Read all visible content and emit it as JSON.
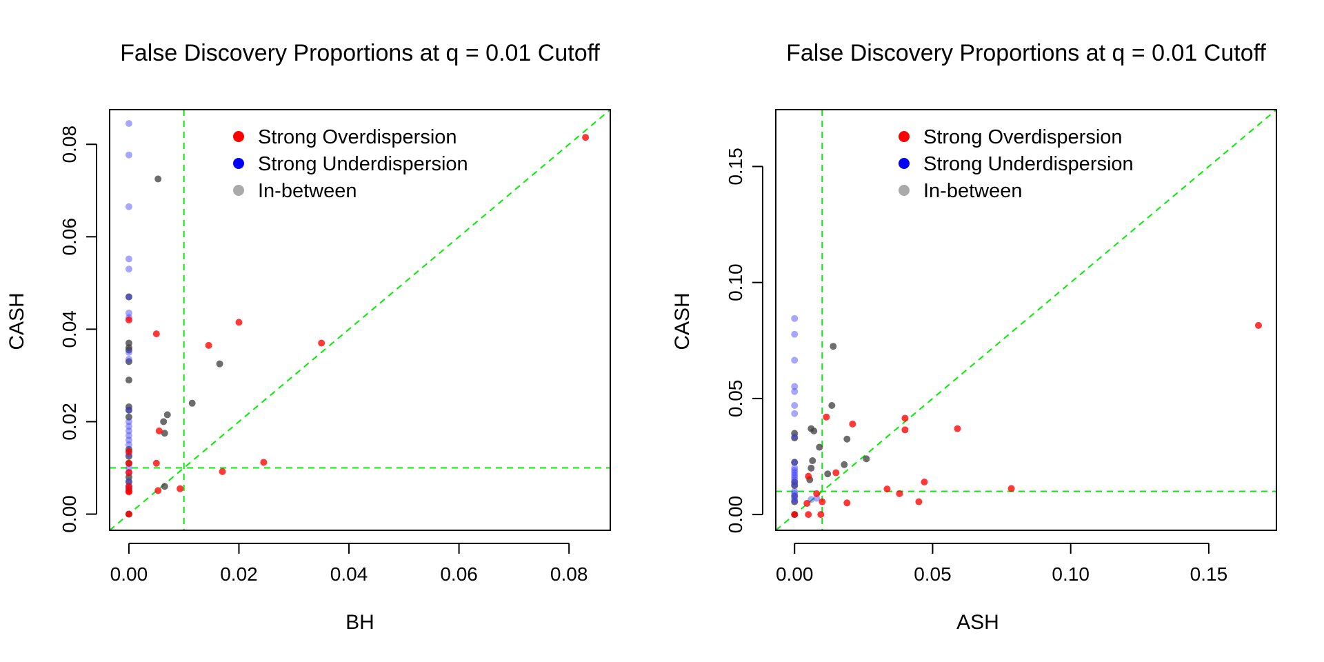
{
  "colors": {
    "overdispersion": "#ff0000",
    "underdispersion": "#3b3bff",
    "in_between": "#444444",
    "reference_lines": "#00ee00",
    "legend_overdispersion": "#ff0000",
    "legend_underdispersion": "#0000ff",
    "legend_in_between": "#aaaaaa"
  },
  "chart_data": [
    {
      "type": "scatter",
      "title": "False Discovery Proportions at q = 0.01 Cutoff",
      "xlabel": "BH",
      "ylabel": "CASH",
      "xlim": [
        -0.0035,
        0.0875
      ],
      "ylim": [
        -0.0035,
        0.0875
      ],
      "xticks": [
        0.0,
        0.02,
        0.04,
        0.06,
        0.08
      ],
      "xtick_labels": [
        "0.00",
        "0.02",
        "0.04",
        "0.06",
        "0.08"
      ],
      "yticks": [
        0.0,
        0.02,
        0.04,
        0.06,
        0.08
      ],
      "ytick_labels": [
        "0.00",
        "0.02",
        "0.04",
        "0.06",
        "0.08"
      ],
      "reference_lines": {
        "vertical": 0.01,
        "horizontal": 0.01,
        "diagonal": true
      },
      "legend_position": "top",
      "legend": [
        "Strong Overdispersion",
        "Strong Underdispersion",
        "In-between"
      ],
      "series": [
        {
          "name": "Strong Overdispersion",
          "color_key": "overdispersion",
          "points": [
            [
              0.083,
              0.0815
            ],
            [
              0.035,
              0.037
            ],
            [
              0.02,
              0.0415
            ],
            [
              0.0145,
              0.0365
            ],
            [
              0.005,
              0.039
            ],
            [
              0.0245,
              0.0112
            ],
            [
              0.017,
              0.0092
            ],
            [
              0.0093,
              0.0055
            ],
            [
              0.0055,
              0.018
            ],
            [
              0.005,
              0.011
            ],
            [
              0.0053,
              0.0051
            ],
            [
              0.0,
              0.042
            ],
            [
              0.0,
              0.009
            ],
            [
              0.0,
              0.006
            ],
            [
              0.0,
              0.005
            ],
            [
              0.0,
              0.0048
            ],
            [
              0.0,
              0.0
            ],
            [
              0.0,
              0.011
            ],
            [
              0.0,
              0.0135
            ]
          ]
        },
        {
          "name": "Strong Underdispersion",
          "color_key": "underdispersion",
          "points": [
            [
              0.0,
              0.0845
            ],
            [
              0.0,
              0.0777
            ],
            [
              0.0,
              0.0665
            ],
            [
              0.0,
              0.0552
            ],
            [
              0.0,
              0.053
            ],
            [
              0.0,
              0.047
            ],
            [
              0.0,
              0.0435
            ],
            [
              0.0,
              0.0425
            ],
            [
              0.0,
              0.035
            ],
            [
              0.0,
              0.0335
            ],
            [
              0.0,
              0.0225
            ],
            [
              0.0,
              0.02
            ],
            [
              0.0,
              0.019
            ],
            [
              0.0,
              0.018
            ],
            [
              0.0,
              0.017
            ],
            [
              0.0,
              0.016
            ],
            [
              0.0,
              0.015
            ],
            [
              0.0,
              0.013
            ],
            [
              0.0,
              0.01
            ],
            [
              0.0,
              0.009
            ],
            [
              0.0,
              0.007
            ],
            [
              0.0,
              0.006
            ]
          ]
        },
        {
          "name": "In-between",
          "color_key": "in_between",
          "points": [
            [
              0.0053,
              0.0725
            ],
            [
              0.0165,
              0.0325
            ],
            [
              0.0115,
              0.024
            ],
            [
              0.007,
              0.0215
            ],
            [
              0.0063,
              0.02
            ],
            [
              0.0065,
              0.0175
            ],
            [
              0.0065,
              0.006
            ],
            [
              0.0,
              0.047
            ],
            [
              0.0,
              0.037
            ],
            [
              0.0,
              0.036
            ],
            [
              0.0,
              0.0355
            ],
            [
              0.0,
              0.033
            ],
            [
              0.0,
              0.029
            ],
            [
              0.0,
              0.0232
            ],
            [
              0.0,
              0.0225
            ],
            [
              0.0,
              0.021
            ],
            [
              0.0,
              0.014
            ],
            [
              0.0,
              0.0125
            ],
            [
              0.0,
              0.011
            ],
            [
              0.0,
              0.008
            ],
            [
              0.0,
              0.007
            ],
            [
              0.0,
              0.0
            ],
            [
              0.0,
              0.0055
            ]
          ]
        }
      ]
    },
    {
      "type": "scatter",
      "title": "False Discovery Proportions at q = 0.01 Cutoff",
      "xlabel": "ASH",
      "ylabel": "CASH",
      "xlim": [
        -0.0068,
        0.1745
      ],
      "ylim": [
        -0.0068,
        0.1745
      ],
      "xticks": [
        0.0,
        0.05,
        0.1,
        0.15
      ],
      "xtick_labels": [
        "0.00",
        "0.05",
        "0.10",
        "0.15"
      ],
      "yticks": [
        0.0,
        0.05,
        0.1,
        0.15
      ],
      "ytick_labels": [
        "0.00",
        "0.05",
        "0.10",
        "0.15"
      ],
      "reference_lines": {
        "vertical": 0.01,
        "horizontal": 0.01,
        "diagonal": true
      },
      "legend_position": "top",
      "legend": [
        "Strong Overdispersion",
        "Strong Underdispersion",
        "In-between"
      ],
      "series": [
        {
          "name": "Strong Overdispersion",
          "color_key": "overdispersion",
          "points": [
            [
              0.168,
              0.0815
            ],
            [
              0.0785,
              0.0112
            ],
            [
              0.059,
              0.037
            ],
            [
              0.04,
              0.0415
            ],
            [
              0.04,
              0.0365
            ],
            [
              0.047,
              0.014
            ],
            [
              0.045,
              0.0055
            ],
            [
              0.038,
              0.009
            ],
            [
              0.0335,
              0.011
            ],
            [
              0.021,
              0.039
            ],
            [
              0.0115,
              0.042
            ],
            [
              0.015,
              0.018
            ],
            [
              0.019,
              0.005
            ],
            [
              0.01,
              0.0055
            ],
            [
              0.0095,
              0.0
            ],
            [
              0.008,
              0.009
            ],
            [
              0.005,
              0.0165
            ],
            [
              0.005,
              0.0
            ],
            [
              0.0045,
              0.0048
            ],
            [
              0.0,
              0.0
            ]
          ]
        },
        {
          "name": "Strong Underdispersion",
          "color_key": "underdispersion",
          "points": [
            [
              0.0,
              0.0845
            ],
            [
              0.0,
              0.0777
            ],
            [
              0.0,
              0.0665
            ],
            [
              0.0,
              0.0552
            ],
            [
              0.0,
              0.053
            ],
            [
              0.0,
              0.047
            ],
            [
              0.0,
              0.0435
            ],
            [
              0.0,
              0.0335
            ],
            [
              0.0,
              0.0225
            ],
            [
              0.0,
              0.02
            ],
            [
              0.0,
              0.019
            ],
            [
              0.0,
              0.018
            ],
            [
              0.0,
              0.017
            ],
            [
              0.0,
              0.016
            ],
            [
              0.0,
              0.015
            ],
            [
              0.0,
              0.013
            ],
            [
              0.0,
              0.01
            ],
            [
              0.0,
              0.009
            ],
            [
              0.0,
              0.007
            ],
            [
              0.0,
              0.006
            ],
            [
              0.008,
              0.007
            ],
            [
              0.006,
              0.0065
            ]
          ]
        },
        {
          "name": "In-between",
          "color_key": "in_between",
          "points": [
            [
              0.014,
              0.0725
            ],
            [
              0.0135,
              0.047
            ],
            [
              0.006,
              0.037
            ],
            [
              0.007,
              0.036
            ],
            [
              0.009,
              0.029
            ],
            [
              0.019,
              0.0325
            ],
            [
              0.026,
              0.024
            ],
            [
              0.0065,
              0.0232
            ],
            [
              0.006,
              0.02
            ],
            [
              0.012,
              0.0175
            ],
            [
              0.0055,
              0.015
            ],
            [
              0.018,
              0.0215
            ],
            [
              0.0,
              0.035
            ],
            [
              0.0,
              0.033
            ],
            [
              0.0,
              0.0225
            ],
            [
              0.0,
              0.014
            ],
            [
              0.0,
              0.0125
            ],
            [
              0.0,
              0.008
            ],
            [
              0.0,
              0.0055
            ],
            [
              0.0,
              0.0
            ]
          ]
        }
      ]
    }
  ]
}
